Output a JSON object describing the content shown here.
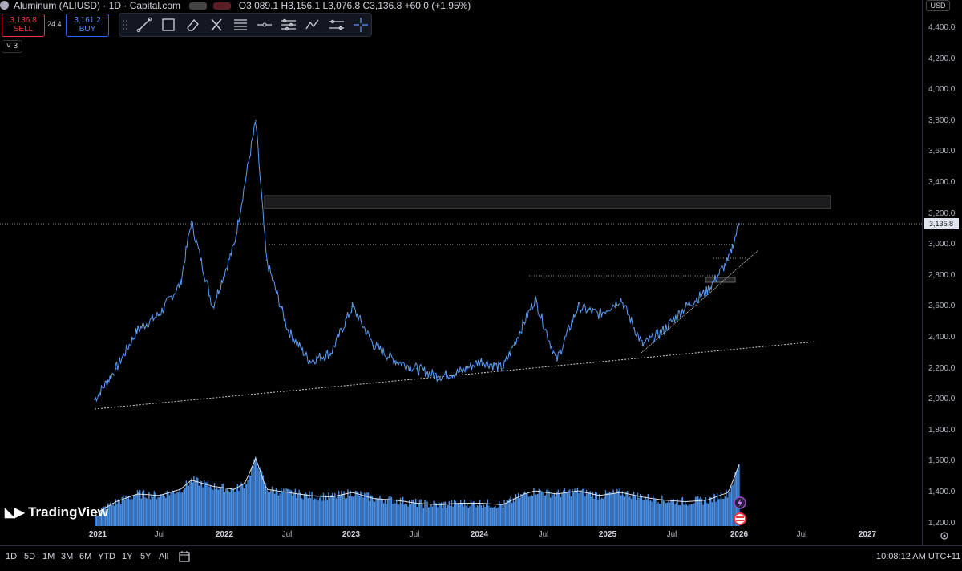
{
  "header": {
    "symbol_title": "Aluminum (ALIUSD) · 1D · Capital.com",
    "ohlc": "O3,089.1 H3,156.1 L3,076.8 C3,136.8 +60.0 (+1.95%)"
  },
  "trade": {
    "sell_price": "3,136.8",
    "sell_label": "SELL",
    "spread": "24.4",
    "buy_price": "3,161.2",
    "buy_label": "BUY"
  },
  "indicators_toggle": "3",
  "toolbar": {
    "icons": [
      "trend-line-icon",
      "rectangle-icon",
      "eraser-icon",
      "cross-icon",
      "fib-retracement-icon",
      "horizontal-ray-icon",
      "parallel-channel-icon",
      "path-icon",
      "measure-icon",
      "crosshair-icon"
    ]
  },
  "price_axis": {
    "currency": "USD",
    "ticks": [
      "4,400.0",
      "4,200.0",
      "4,000.0",
      "3,800.0",
      "3,600.0",
      "3,400.0",
      "3,200.0",
      "3,000.0",
      "2,800.0",
      "2,600.0",
      "2,400.0",
      "2,200.0",
      "2,000.0",
      "1,800.0",
      "1,600.0",
      "1,400.0",
      "1,200.0"
    ],
    "current_price": "3,136.8"
  },
  "time_axis": {
    "ticks": [
      "2021",
      "Jul",
      "2022",
      "Jul",
      "2023",
      "Jul",
      "2024",
      "Jul",
      "2025",
      "Jul",
      "2026",
      "Jul",
      "2027"
    ]
  },
  "ranges": [
    "1D",
    "5D",
    "1M",
    "3M",
    "6M",
    "YTD",
    "1Y",
    "5Y",
    "All"
  ],
  "clock": "10:08:12 AM UTC+11",
  "brand": "TradingView",
  "colors": {
    "background": "#000000",
    "line": "#5b9cf6",
    "volume": "#4d8fe0",
    "sell": "#f23645",
    "buy": "#2962ff"
  },
  "chart_data": {
    "type": "line",
    "ylim": [
      1200,
      4400
    ],
    "x": [
      "2021-01",
      "2021-03",
      "2021-05",
      "2021-07",
      "2021-09",
      "2021-10",
      "2021-12",
      "2022-02",
      "2022-03",
      "2022-04",
      "2022-05",
      "2022-07",
      "2022-09",
      "2022-11",
      "2023-01",
      "2023-03",
      "2023-05",
      "2023-07",
      "2023-09",
      "2023-11",
      "2024-01",
      "2024-03",
      "2024-05",
      "2024-06",
      "2024-08",
      "2024-10",
      "2024-12",
      "2025-02",
      "2025-04",
      "2025-06",
      "2025-08",
      "2025-10",
      "2025-12",
      "2026-01"
    ],
    "series": [
      {
        "values": [
          2000,
          2200,
          2450,
          2550,
          2750,
          3150,
          2600,
          3000,
          3400,
          3800,
          2900,
          2450,
          2250,
          2300,
          2600,
          2350,
          2250,
          2200,
          2150,
          2180,
          2250,
          2200,
          2500,
          2650,
          2250,
          2600,
          2550,
          2650,
          2350,
          2450,
          2600,
          2700,
          2900,
          3136.8
        ]
      },
      {
        "values": [
          1260,
          1340,
          1390,
          1380,
          1420,
          1480,
          1440,
          1420,
          1460,
          1620,
          1420,
          1400,
          1380,
          1370,
          1400,
          1360,
          1350,
          1330,
          1320,
          1330,
          1330,
          1320,
          1390,
          1410,
          1390,
          1410,
          1380,
          1400,
          1370,
          1350,
          1340,
          1350,
          1400,
          1580
        ]
      }
    ]
  }
}
